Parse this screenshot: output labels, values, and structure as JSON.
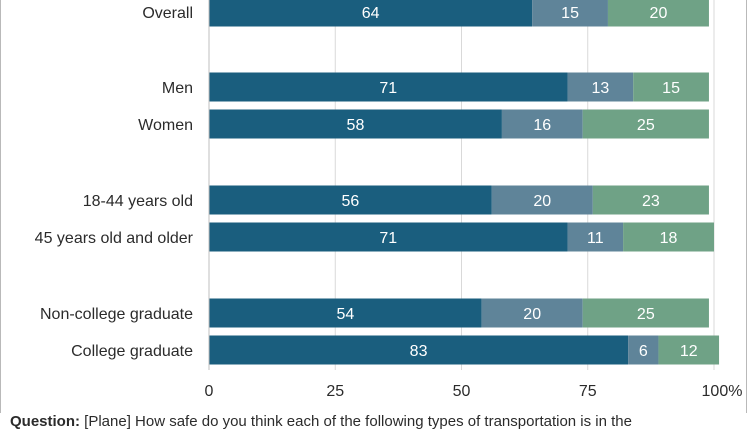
{
  "chart_data": {
    "type": "bar",
    "orientation": "horizontal",
    "stacked": true,
    "categories": [
      "Overall",
      "Men",
      "Women",
      "18-44 years old",
      "45 years old and older",
      "Non-college graduate",
      "College graduate"
    ],
    "series": [
      {
        "values": [
          64,
          71,
          58,
          56,
          71,
          54,
          83
        ]
      },
      {
        "values": [
          15,
          13,
          16,
          20,
          11,
          20,
          6
        ]
      },
      {
        "values": [
          20,
          15,
          25,
          23,
          18,
          25,
          12
        ]
      }
    ],
    "colors": [
      "#1a5e7e",
      "#5f8499",
      "#6fa286"
    ],
    "xlim": [
      0,
      100
    ],
    "xticks": [
      "0",
      "25",
      "50",
      "75",
      "100"
    ],
    "x_unit": "%",
    "grid": true
  },
  "footnote": {
    "label": "Question:",
    "text": "[Plane] How safe do you think each of the following types of transportation is in the"
  }
}
